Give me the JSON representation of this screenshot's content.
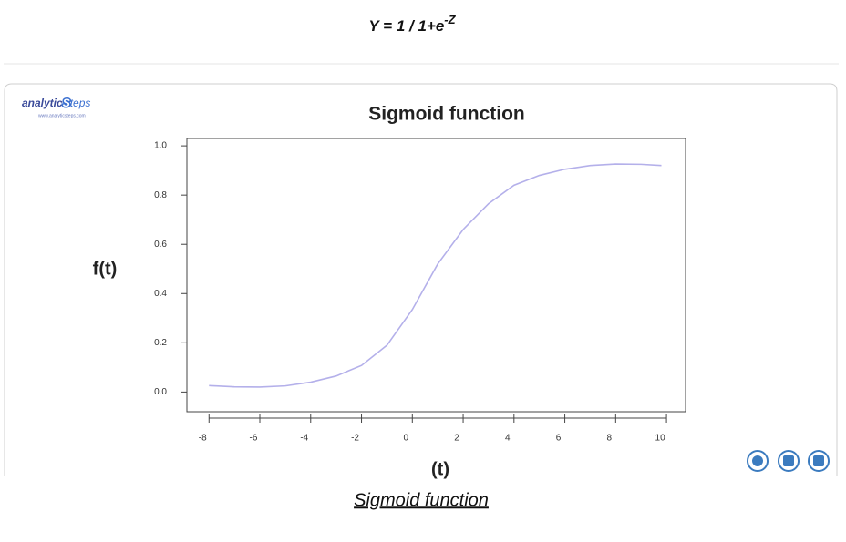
{
  "formula": {
    "text": "Y = 1 / 1+e",
    "superscript": "-Z"
  },
  "logo": {
    "name": "analytic",
    "name_highlight": "S",
    "name_rest": "teps",
    "url": "www.analyticsteps.com"
  },
  "chart_data": {
    "type": "line",
    "title": "Sigmoid function",
    "x_label": "(t)",
    "y_label": "f(t)",
    "x": [
      -8,
      -7,
      -6,
      -5,
      -4,
      -3,
      -2,
      -1,
      0,
      1,
      2,
      3,
      4,
      5,
      6,
      7,
      8,
      9,
      9.8
    ],
    "series": [
      {
        "name": "f(t)",
        "color": "#b4b0ea",
        "values": [
          0.026,
          0.021,
          0.02,
          0.025,
          0.04,
          0.065,
          0.108,
          0.19,
          0.335,
          0.52,
          0.66,
          0.765,
          0.84,
          0.88,
          0.905,
          0.92,
          0.926,
          0.925,
          0.92
        ]
      }
    ],
    "xlim": [
      -8.87,
      10.75
    ],
    "ylim": [
      -0.08,
      1.03
    ],
    "xticks": [
      -8,
      -6,
      -4,
      -2,
      0,
      2,
      4,
      6,
      8,
      10
    ],
    "yticks": [
      {
        "value": 0,
        "label": "0.0"
      },
      0.2,
      0.4,
      0.6,
      0.8,
      {
        "value": 1,
        "label": "1.0"
      }
    ]
  },
  "caption": "Sigmoid function"
}
